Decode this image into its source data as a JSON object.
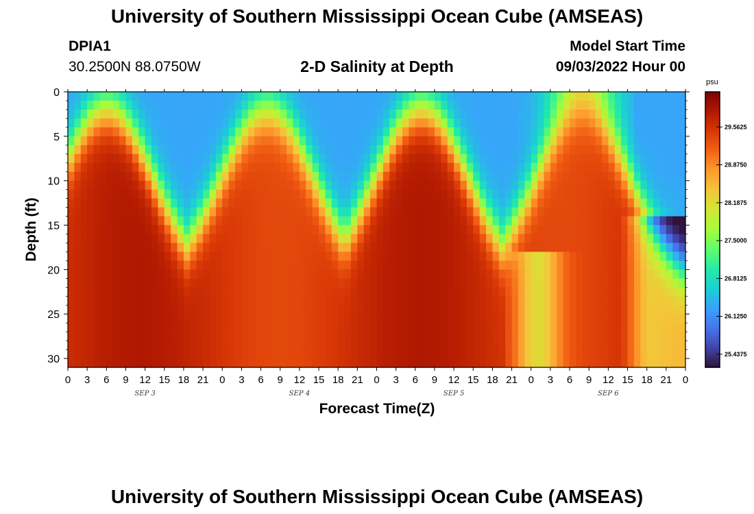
{
  "header": {
    "title_top": "University of Southern Mississippi Ocean Cube (AMSEAS)",
    "station_id": "DPIA1",
    "station_coords": "30.2500N  88.0750W",
    "subtitle": "2-D Salinity at Depth",
    "model_start_label": "Model Start Time",
    "model_start_value": "09/03/2022 Hour 00",
    "title_bottom": "University of Southern Mississippi Ocean Cube (AMSEAS)"
  },
  "chart_data": {
    "type": "heatmap",
    "title": "2-D Salinity at Depth",
    "xlabel": "Forecast Time(Z)",
    "ylabel": "Depth (ft)",
    "x_hours_range": [
      0,
      96
    ],
    "x_tick_step_hours": 3,
    "x_tick_labels": [
      "0",
      "3",
      "6",
      "9",
      "12",
      "15",
      "18",
      "21",
      "0",
      "3",
      "6",
      "9",
      "12",
      "15",
      "18",
      "21",
      "0",
      "3",
      "6",
      "9",
      "12",
      "15",
      "18",
      "21",
      "0",
      "3",
      "6",
      "9",
      "12",
      "15",
      "18",
      "21",
      "0"
    ],
    "date_labels": [
      {
        "label": "SEP 3",
        "hour": 12
      },
      {
        "label": "SEP 4",
        "hour": 36
      },
      {
        "label": "SEP 5",
        "hour": 60
      },
      {
        "label": "SEP 6",
        "hour": 84
      }
    ],
    "y_range_ft": [
      0,
      31
    ],
    "y_ticks": [
      0,
      5,
      10,
      15,
      20,
      25,
      30
    ],
    "colorbar": {
      "unit": "psu",
      "min": 25.2,
      "max": 30.2,
      "tick_values": [
        29.5625,
        28.875,
        28.1875,
        27.5,
        26.8125,
        26.125,
        25.4375
      ],
      "tick_labels": [
        "29.5625",
        "28.8750",
        "28.1875",
        "27.5000",
        "26.8125",
        "26.1250",
        "25.4375"
      ],
      "colors": [
        "#30123b",
        "#4145ab",
        "#4675ed",
        "#39a2fc",
        "#1bcfd4",
        "#24eca6",
        "#61fc6c",
        "#a4fc3b",
        "#d1e834",
        "#f3c63a",
        "#fe9b2d",
        "#f36315",
        "#d93806",
        "#b11901",
        "#7a0402"
      ]
    },
    "salinity_model": {
      "surface_psu": 26.3,
      "bottom_psu": 29.6,
      "tidal_peaks_hours": [
        6,
        31,
        55,
        80
      ],
      "peak_half_width_hours": 4,
      "trough_hours": [
        19,
        43,
        67,
        92
      ],
      "halocline_min_ft": 2,
      "halocline_max_ft": 22
    }
  }
}
